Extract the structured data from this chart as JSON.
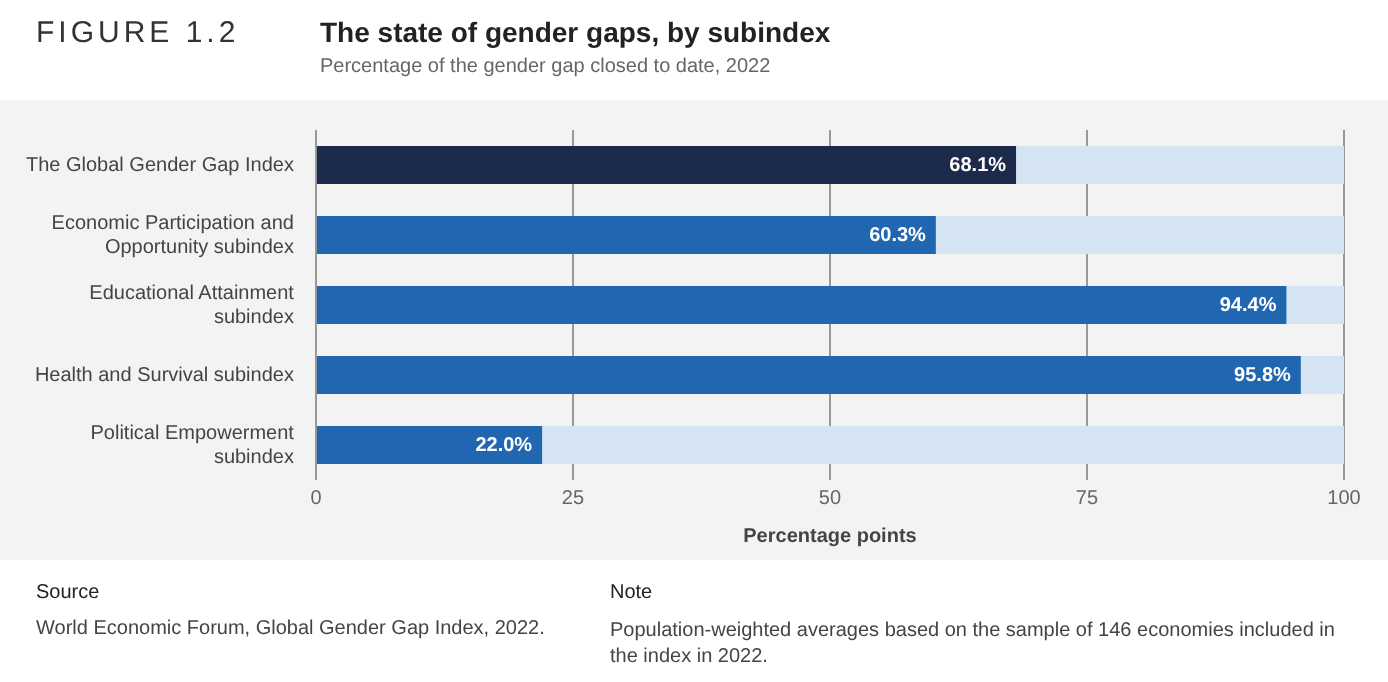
{
  "chart_data": {
    "type": "bar",
    "orientation": "horizontal",
    "stacked": true,
    "title": "The state of gender gaps, by subindex",
    "subtitle": "Percentage of the gender gap closed to date, 2022",
    "xlabel": "Percentage points",
    "categories": [
      "The Global Gender Gap Index",
      "Economic Participation and Opportunity subindex",
      "Educational Attainment subindex",
      "Health and Survival subindex",
      "Political Empowerment subindex"
    ],
    "series": [
      {
        "colors": [
          "#1c2b4b",
          "#2166b0",
          "#2166b0",
          "#2166b0",
          "#2166b0"
        ],
        "values": [
          68.1,
          60.3,
          94.4,
          95.8,
          22.0
        ],
        "value_labels": [
          "68.1%",
          "60.3%",
          "94.4%",
          "95.8%",
          "22.0%"
        ]
      },
      {
        "color": "#d5e4f3",
        "values": [
          31.9,
          39.7,
          5.6,
          4.2,
          78.0
        ]
      }
    ],
    "xlim": [
      0,
      100
    ],
    "xticks": [
      0,
      25,
      50,
      75,
      100
    ],
    "grid": "x",
    "legend": false,
    "annotations": [
      "FIGURE 1.2",
      "Source",
      "World Economic Forum, Global Gender Gap Index, 2022.",
      "Note",
      "Population-weighted averages based on the sample of 146 economies included in the index in 2022."
    ]
  }
}
